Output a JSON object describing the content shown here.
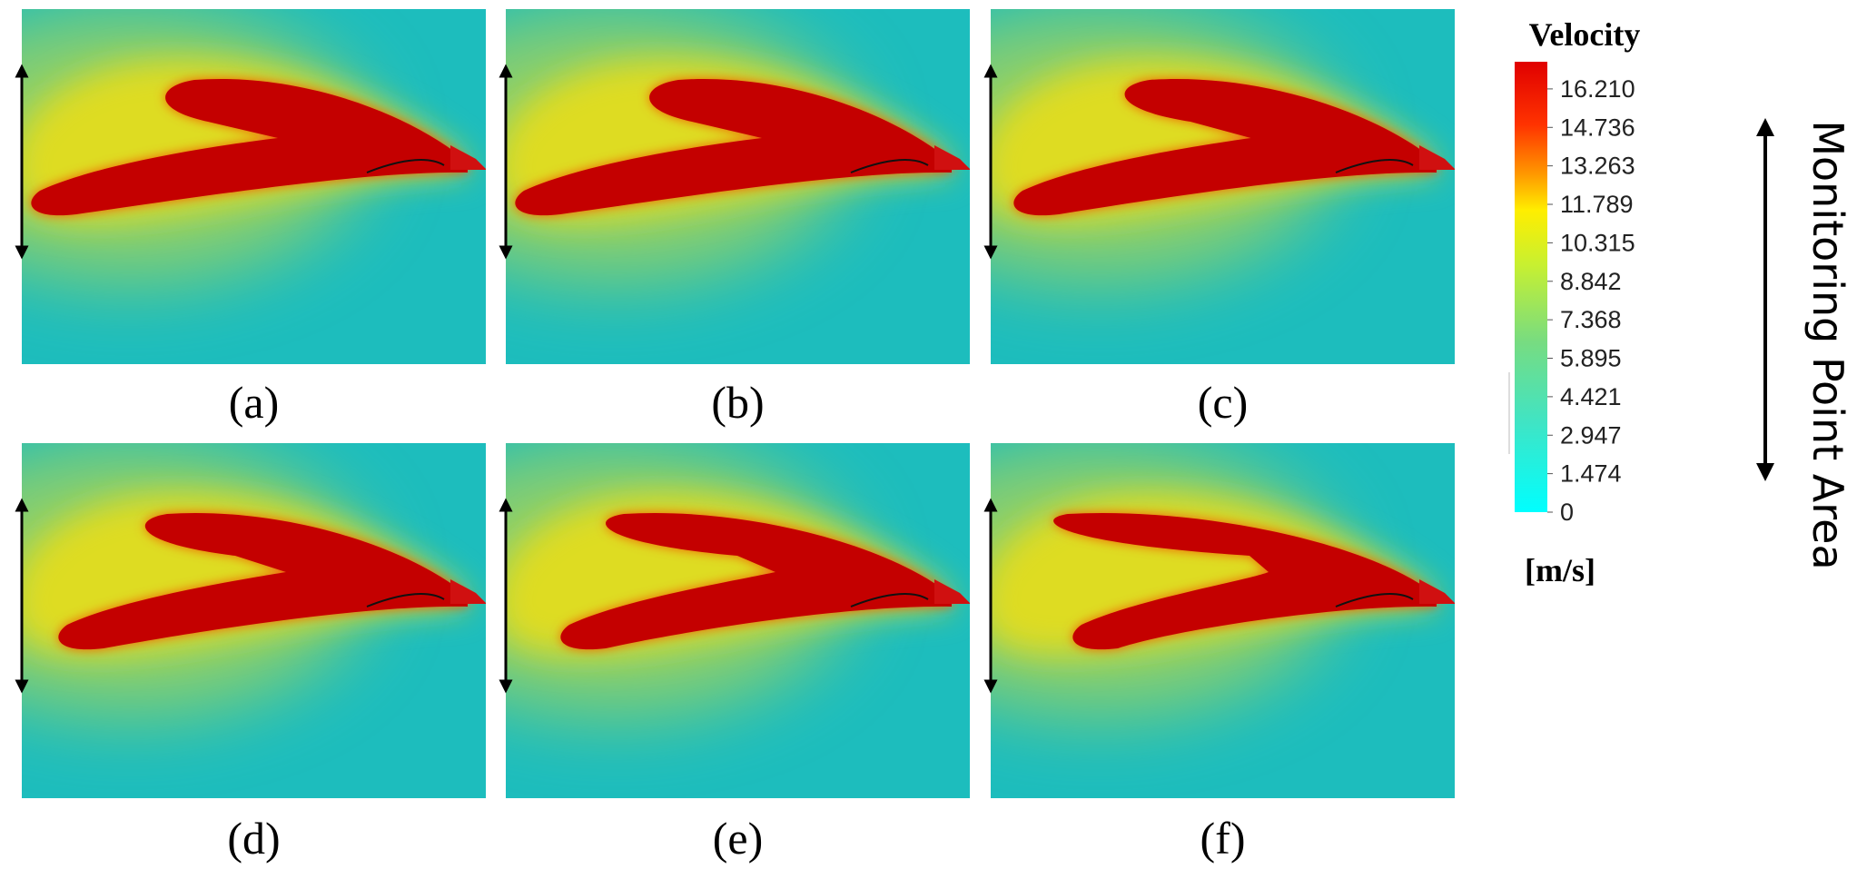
{
  "panels": [
    {
      "label": "(a)"
    },
    {
      "label": "(b)"
    },
    {
      "label": "(c)"
    },
    {
      "label": "(d)"
    },
    {
      "label": "(e)"
    },
    {
      "label": "(f)"
    }
  ],
  "legend": {
    "title": "Velocity",
    "unit": "[m/s]",
    "range": [
      0,
      17.25
    ],
    "ticks": [
      0,
      1.474,
      2.947,
      4.421,
      5.895,
      7.368,
      8.842,
      10.315,
      11.789,
      13.263,
      14.736,
      {
        "value": 16.21,
        "label": "16.210"
      }
    ]
  },
  "annotation": "Monitoring Point Area"
}
